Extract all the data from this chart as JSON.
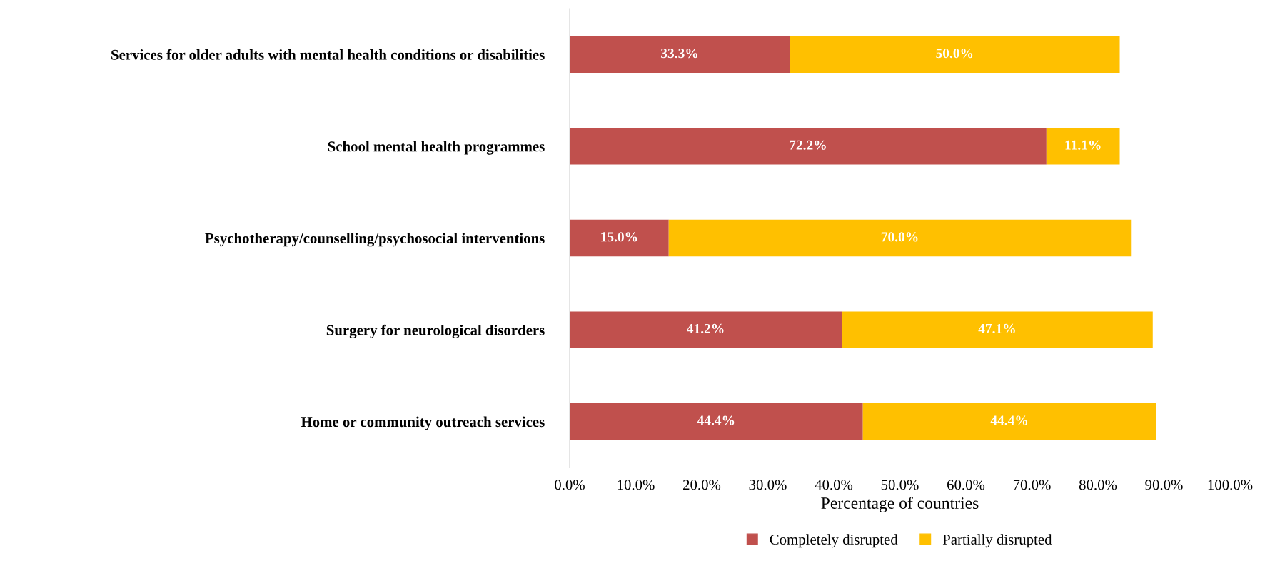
{
  "chart_data": {
    "type": "bar",
    "orientation": "horizontal",
    "stacked": true,
    "categories": [
      "Services for older adults with mental health conditions or disabilities",
      "School mental health programmes",
      "Psychotherapy/counselling/psychosocial interventions",
      "Surgery for neurological disorders",
      "Home or community outreach services"
    ],
    "series": [
      {
        "name": "Completely disrupted",
        "color": "#c0504d",
        "values": [
          33.3,
          72.2,
          15.0,
          41.2,
          44.4
        ],
        "value_labels": [
          "33.3%",
          "72.2%",
          "15.0%",
          "41.2%",
          "44.4%"
        ]
      },
      {
        "name": "Partially disrupted",
        "color": "#ffc000",
        "values": [
          50.0,
          11.1,
          70.0,
          47.1,
          44.4
        ],
        "value_labels": [
          "50.0%",
          "11.1%",
          "70.0%",
          "47.1%",
          "44.4%"
        ]
      }
    ],
    "xlabel": "Percentage of countries",
    "xlim": [
      0,
      100
    ],
    "xticks": [
      {
        "value": 0,
        "label": "0.0%"
      },
      {
        "value": 10,
        "label": "10.0%"
      },
      {
        "value": 20,
        "label": "20.0%"
      },
      {
        "value": 30,
        "label": "30.0%"
      },
      {
        "value": 40,
        "label": "40.0%"
      },
      {
        "value": 50,
        "label": "50.0%"
      },
      {
        "value": 60,
        "label": "60.0%"
      },
      {
        "value": 70,
        "label": "70.0%"
      },
      {
        "value": 80,
        "label": "80.0%"
      },
      {
        "value": 90,
        "label": "90.0%"
      },
      {
        "value": 100,
        "label": "100.0%"
      }
    ],
    "grid": false,
    "legend": "bottom"
  }
}
